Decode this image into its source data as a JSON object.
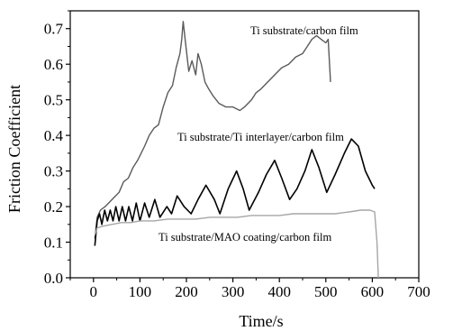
{
  "chart_data": {
    "type": "line",
    "xlabel": "Time/s",
    "ylabel": "Friction Coefficient",
    "xlim": [
      -50,
      700
    ],
    "ylim": [
      0.0,
      0.75
    ],
    "xticks": [
      0,
      100,
      200,
      300,
      400,
      500,
      600,
      700
    ],
    "yticks": [
      0.0,
      0.1,
      0.2,
      0.3,
      0.4,
      0.5,
      0.6,
      0.7
    ],
    "grid": false,
    "series": [
      {
        "name": "Ti substrate/carbon film",
        "color": "#5a5a5a",
        "points": [
          [
            3,
            0.11
          ],
          [
            8,
            0.17
          ],
          [
            15,
            0.19
          ],
          [
            25,
            0.2
          ],
          [
            40,
            0.22
          ],
          [
            55,
            0.24
          ],
          [
            65,
            0.27
          ],
          [
            75,
            0.28
          ],
          [
            85,
            0.31
          ],
          [
            95,
            0.33
          ],
          [
            110,
            0.37
          ],
          [
            120,
            0.4
          ],
          [
            130,
            0.42
          ],
          [
            140,
            0.43
          ],
          [
            150,
            0.48
          ],
          [
            160,
            0.52
          ],
          [
            170,
            0.54
          ],
          [
            178,
            0.59
          ],
          [
            186,
            0.63
          ],
          [
            190,
            0.67
          ],
          [
            193,
            0.72
          ],
          [
            198,
            0.66
          ],
          [
            205,
            0.58
          ],
          [
            212,
            0.61
          ],
          [
            220,
            0.57
          ],
          [
            225,
            0.63
          ],
          [
            232,
            0.6
          ],
          [
            240,
            0.55
          ],
          [
            248,
            0.53
          ],
          [
            258,
            0.51
          ],
          [
            270,
            0.49
          ],
          [
            285,
            0.48
          ],
          [
            300,
            0.48
          ],
          [
            315,
            0.47
          ],
          [
            325,
            0.48
          ],
          [
            340,
            0.5
          ],
          [
            350,
            0.52
          ],
          [
            360,
            0.53
          ],
          [
            375,
            0.55
          ],
          [
            390,
            0.57
          ],
          [
            405,
            0.59
          ],
          [
            420,
            0.6
          ],
          [
            435,
            0.62
          ],
          [
            450,
            0.63
          ],
          [
            460,
            0.65
          ],
          [
            470,
            0.67
          ],
          [
            480,
            0.68
          ],
          [
            490,
            0.67
          ],
          [
            500,
            0.66
          ],
          [
            505,
            0.67
          ],
          [
            510,
            0.55
          ]
        ],
        "label": "Ti substrate/carbon film"
      },
      {
        "name": "Ti substrate/Ti interlayer/carbon film",
        "color": "#000000",
        "points": [
          [
            3,
            0.09
          ],
          [
            8,
            0.16
          ],
          [
            13,
            0.18
          ],
          [
            18,
            0.15
          ],
          [
            24,
            0.19
          ],
          [
            30,
            0.16
          ],
          [
            36,
            0.19
          ],
          [
            42,
            0.16
          ],
          [
            48,
            0.2
          ],
          [
            55,
            0.16
          ],
          [
            62,
            0.2
          ],
          [
            69,
            0.16
          ],
          [
            76,
            0.2
          ],
          [
            84,
            0.16
          ],
          [
            92,
            0.21
          ],
          [
            100,
            0.16
          ],
          [
            110,
            0.21
          ],
          [
            120,
            0.17
          ],
          [
            132,
            0.22
          ],
          [
            143,
            0.17
          ],
          [
            158,
            0.2
          ],
          [
            168,
            0.18
          ],
          [
            180,
            0.23
          ],
          [
            195,
            0.2
          ],
          [
            210,
            0.18
          ],
          [
            225,
            0.22
          ],
          [
            242,
            0.26
          ],
          [
            260,
            0.22
          ],
          [
            272,
            0.18
          ],
          [
            290,
            0.25
          ],
          [
            308,
            0.3
          ],
          [
            322,
            0.25
          ],
          [
            335,
            0.19
          ],
          [
            355,
            0.24
          ],
          [
            372,
            0.29
          ],
          [
            390,
            0.33
          ],
          [
            405,
            0.28
          ],
          [
            422,
            0.22
          ],
          [
            438,
            0.25
          ],
          [
            455,
            0.3
          ],
          [
            470,
            0.36
          ],
          [
            485,
            0.31
          ],
          [
            502,
            0.24
          ],
          [
            520,
            0.29
          ],
          [
            540,
            0.35
          ],
          [
            555,
            0.39
          ],
          [
            570,
            0.37
          ],
          [
            585,
            0.3
          ],
          [
            600,
            0.26
          ],
          [
            605,
            0.25
          ]
        ],
        "label": "Ti substrate/Ti interlayer/carbon film"
      },
      {
        "name": "Ti substrate/MAO coating/carbon film",
        "color": "#a6a6a6",
        "points": [
          [
            3,
            0.12
          ],
          [
            8,
            0.14
          ],
          [
            20,
            0.145
          ],
          [
            40,
            0.15
          ],
          [
            60,
            0.155
          ],
          [
            80,
            0.155
          ],
          [
            100,
            0.16
          ],
          [
            130,
            0.16
          ],
          [
            160,
            0.165
          ],
          [
            190,
            0.165
          ],
          [
            220,
            0.165
          ],
          [
            250,
            0.17
          ],
          [
            280,
            0.17
          ],
          [
            310,
            0.17
          ],
          [
            340,
            0.175
          ],
          [
            370,
            0.175
          ],
          [
            400,
            0.175
          ],
          [
            430,
            0.18
          ],
          [
            460,
            0.18
          ],
          [
            490,
            0.18
          ],
          [
            520,
            0.18
          ],
          [
            550,
            0.185
          ],
          [
            575,
            0.19
          ],
          [
            595,
            0.19
          ],
          [
            605,
            0.185
          ],
          [
            610,
            0.1
          ],
          [
            613,
            0.0
          ]
        ],
        "label": "Ti substrate/MAO coating/carbon film"
      }
    ]
  }
}
